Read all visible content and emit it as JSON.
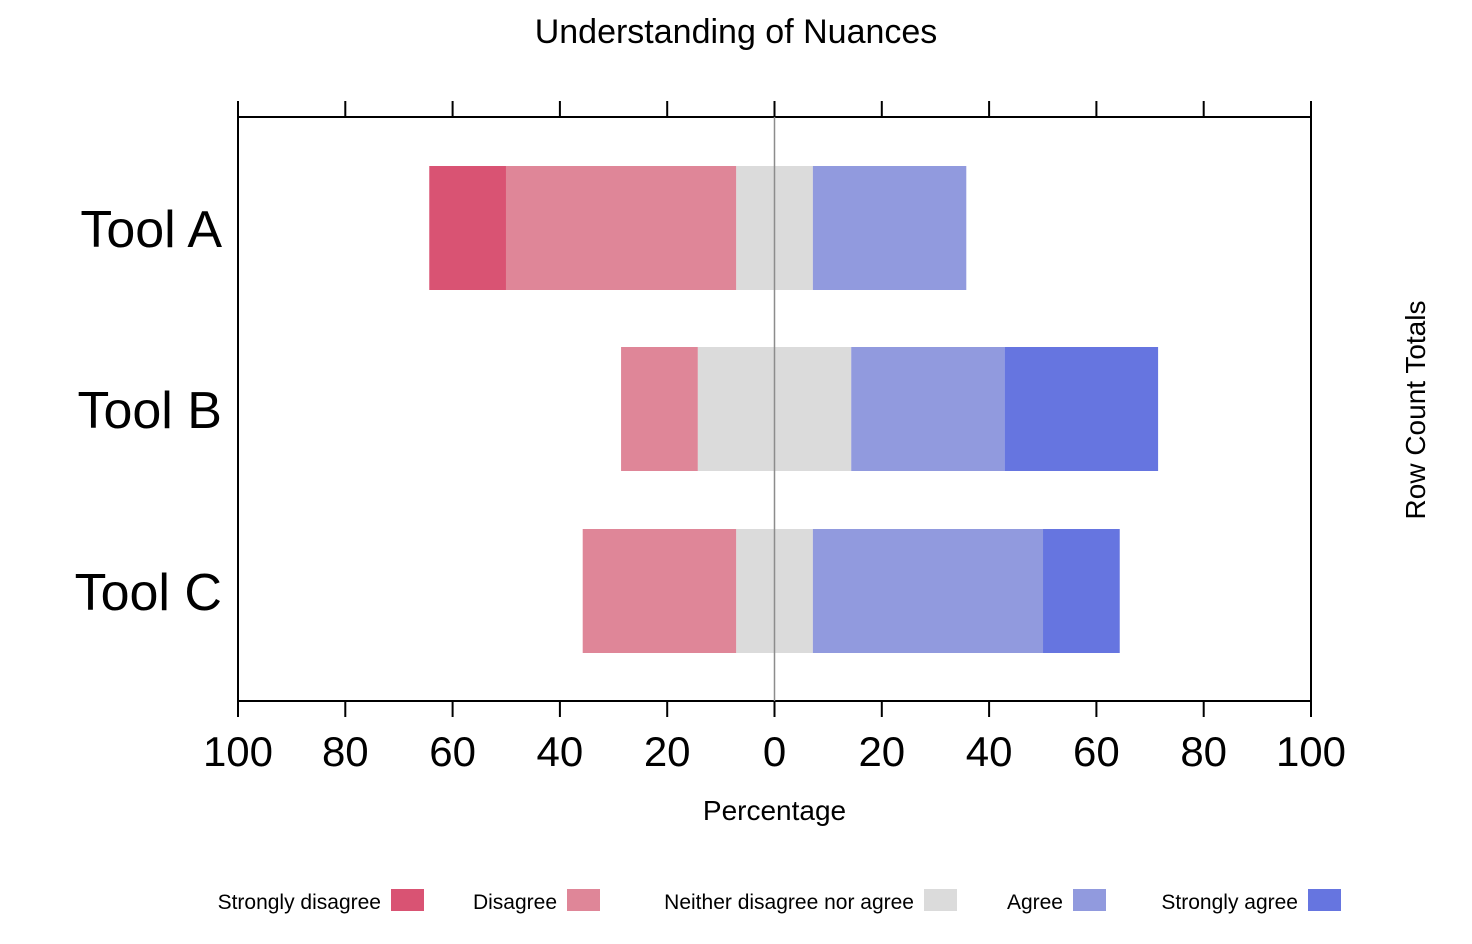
{
  "chart_data": {
    "type": "bar",
    "orientation": "horizontal",
    "stacked": "diverging",
    "title": "Understanding of Nuances",
    "xlabel": "Percentage",
    "right_label": "Row Count Totals",
    "xlim": [
      -100,
      100
    ],
    "x_ticks": [
      -100,
      -80,
      -60,
      -40,
      -20,
      0,
      20,
      40,
      60,
      80,
      100
    ],
    "x_tick_labels": [
      "100",
      "80",
      "60",
      "40",
      "20",
      "0",
      "20",
      "40",
      "60",
      "80",
      "100"
    ],
    "categories": [
      "Tool A",
      "Tool B",
      "Tool C"
    ],
    "series": [
      {
        "name": "Strongly disagree",
        "color": "#D95373",
        "values": [
          14.3,
          0,
          0
        ]
      },
      {
        "name": "Disagree",
        "color": "#DF8698",
        "values": [
          42.9,
          14.3,
          28.6
        ]
      },
      {
        "name": "Neither disagree nor agree",
        "color": "#DBDBDB",
        "values": [
          14.3,
          28.6,
          14.3
        ]
      },
      {
        "name": "Agree",
        "color": "#919ADE",
        "values": [
          28.6,
          28.6,
          42.9
        ]
      },
      {
        "name": "Strongly agree",
        "color": "#6675E0",
        "values": [
          0,
          28.6,
          14.3
        ]
      }
    ],
    "legend_position": "bottom",
    "grid": false
  }
}
